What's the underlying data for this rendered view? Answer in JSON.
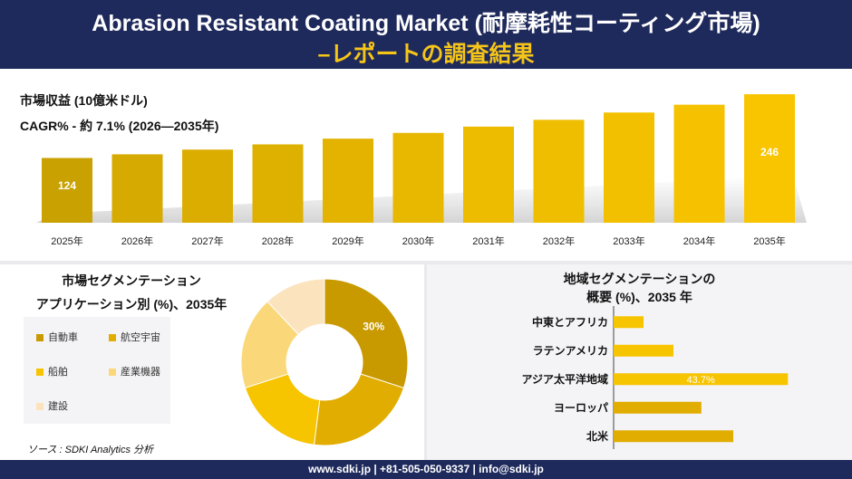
{
  "header": {
    "title_line1": "Abrasion Resistant Coating Market (耐摩耗性コーティング市場)",
    "title_line2": "–レポートの調査結果"
  },
  "market": {
    "revenue_label": "市場収益 (10億米ドル)",
    "cagr_label": "CAGR% - 約 7.1% (2026—2035年)"
  },
  "chart_data": [
    {
      "type": "bar",
      "categories": [
        "2025年",
        "2026年",
        "2027年",
        "2028年",
        "2029年",
        "2030年",
        "2031年",
        "2032年",
        "2033年",
        "2034年",
        "2035年"
      ],
      "values": [
        124,
        131,
        140,
        150,
        161,
        172,
        184,
        197,
        211,
        226,
        246
      ],
      "data_labels": {
        "2025年": "124",
        "2035年": "246"
      },
      "colors": [
        "#c9a100",
        "#d6aa00",
        "#dbad00",
        "#deb000",
        "#e3b300",
        "#e8b700",
        "#edbb00",
        "#f0be00",
        "#f3c000",
        "#f6c200",
        "#f9c400"
      ],
      "ylim": [
        0,
        260
      ]
    },
    {
      "type": "pie",
      "labels": [
        "自動車",
        "航空宇宙",
        "船舶",
        "産業機器",
        "建設"
      ],
      "values": [
        30,
        22,
        18,
        18,
        12
      ],
      "data_labels": [
        "30%"
      ],
      "colors": [
        "#c89a00",
        "#e1ad00",
        "#f7c400",
        "#fad87a",
        "#fbe3bd"
      ]
    },
    {
      "type": "bar",
      "orientation": "horizontal",
      "categories": [
        "中東とアフリカ",
        "ラテンアメリカ",
        "アジア太平洋地域",
        "ヨーロッパ",
        "北米"
      ],
      "values": [
        7.5,
        15.0,
        43.7,
        22.0,
        30.0
      ],
      "data_labels": [
        "",
        "",
        "43.7%",
        "",
        ""
      ],
      "colors": [
        "#f7c400",
        "#f7c400",
        "#f7c400",
        "#e1ad00",
        "#e1ad00"
      ],
      "xlim": [
        0,
        45
      ]
    }
  ],
  "segmentation": {
    "title_line1": "市場セグメンテーション",
    "title_line2": "アプリケーション別 (%)、2035年"
  },
  "regional": {
    "title_line1": "地域セグメンテーションの",
    "title_line2": "概要 (%)、2035 年"
  },
  "source": "ソース : SDKI Analytics 分析",
  "footer": "www.sdki.jp | +81-505-050-9337 | info@sdki.jp"
}
